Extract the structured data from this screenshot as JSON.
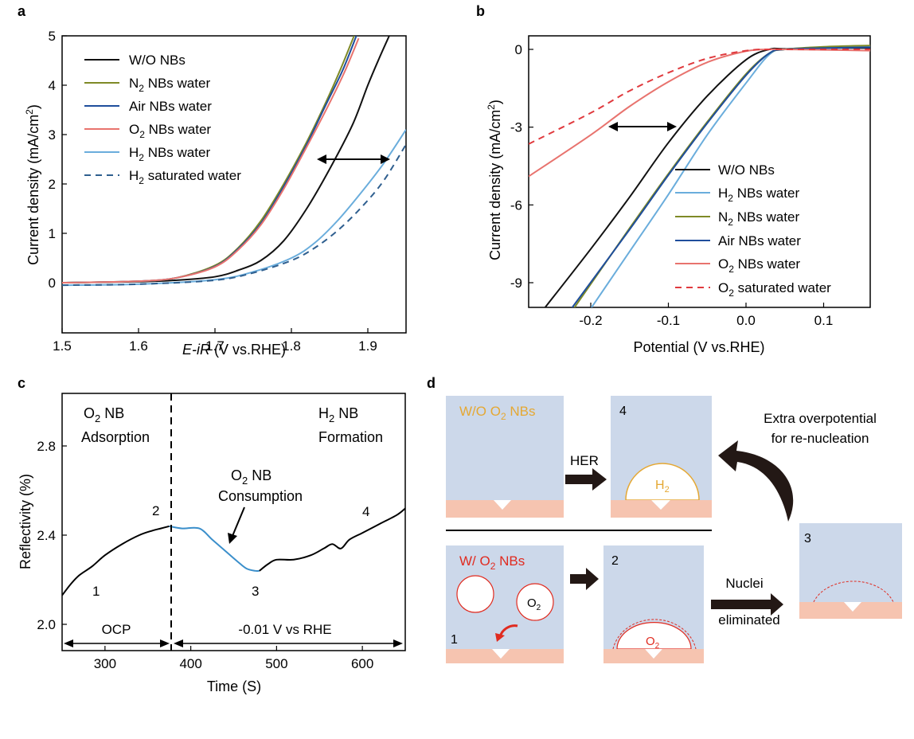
{
  "chart_data": [
    {
      "panel": "a",
      "type": "line",
      "xlabel": "E-iR",
      "xlabel_unit": " (V vs.RHE)",
      "ylabel": "Current density (mA/cm2)",
      "xlim": [
        1.5,
        1.95
      ],
      "ylim": [
        -0.1,
        5
      ],
      "xticks": [
        1.5,
        1.6,
        1.7,
        1.8,
        1.9
      ],
      "yticks": [
        0,
        1,
        2,
        3,
        4,
        5
      ],
      "legend": "top-left",
      "series": [
        {
          "name": "W/O NBs",
          "color": "#111111",
          "dash": false,
          "x": [
            1.5,
            1.6,
            1.65,
            1.7,
            1.73,
            1.76,
            1.79,
            1.82,
            1.85,
            1.88,
            1.9,
            1.915,
            1.928
          ],
          "y": [
            0,
            0.02,
            0.05,
            0.12,
            0.25,
            0.45,
            0.85,
            1.5,
            2.3,
            3.2,
            4.0,
            4.55,
            5.0
          ]
        },
        {
          "name": "N2 NBs water",
          "color": "#7f8a26",
          "dash": false,
          "x": [
            1.5,
            1.6,
            1.65,
            1.7,
            1.73,
            1.76,
            1.79,
            1.82,
            1.845,
            1.865,
            1.882
          ],
          "y": [
            0,
            0.03,
            0.1,
            0.35,
            0.7,
            1.25,
            2.0,
            2.85,
            3.65,
            4.35,
            5.0
          ]
        },
        {
          "name": "Air NBs water",
          "color": "#1f4e9c",
          "dash": false,
          "x": [
            1.5,
            1.6,
            1.65,
            1.7,
            1.73,
            1.76,
            1.79,
            1.82,
            1.845,
            1.867,
            1.885
          ],
          "y": [
            0,
            0.03,
            0.1,
            0.33,
            0.68,
            1.2,
            1.95,
            2.8,
            3.6,
            4.3,
            5.0
          ]
        },
        {
          "name": "O2 NBs water",
          "color": "#e8736e",
          "dash": false,
          "x": [
            1.5,
            1.6,
            1.65,
            1.7,
            1.73,
            1.76,
            1.79,
            1.82,
            1.847,
            1.869,
            1.888
          ],
          "y": [
            0,
            0.03,
            0.1,
            0.32,
            0.66,
            1.17,
            1.9,
            2.75,
            3.55,
            4.25,
            4.95
          ]
        },
        {
          "name": "H2 NBs water",
          "color": "#6aaddc",
          "dash": false,
          "x": [
            1.5,
            1.6,
            1.7,
            1.75,
            1.8,
            1.83,
            1.86,
            1.89,
            1.92,
            1.95
          ],
          "y": [
            -0.05,
            -0.03,
            0.06,
            0.22,
            0.5,
            0.8,
            1.25,
            1.8,
            2.4,
            3.1
          ]
        },
        {
          "name": "H2 saturated water",
          "color": "#2f5f8f",
          "dash": true,
          "x": [
            1.5,
            1.6,
            1.7,
            1.75,
            1.8,
            1.83,
            1.86,
            1.89,
            1.92,
            1.95
          ],
          "y": [
            -0.05,
            -0.03,
            0.05,
            0.2,
            0.45,
            0.7,
            1.05,
            1.5,
            2.05,
            2.8
          ]
        }
      ],
      "legend_labels": [
        "W/O NBs",
        "N",
        "2",
        " NBs water",
        "Air NBs water",
        "O",
        "2",
        " NBs water",
        "H",
        "2",
        " NBs water",
        "H",
        "2",
        " saturated water"
      ]
    },
    {
      "panel": "b",
      "type": "line",
      "xlabel": "Potential (V vs.RHE)",
      "ylabel": "Current density (mA/cm2)",
      "xlim": [
        -0.28,
        0.16
      ],
      "ylim": [
        -10,
        0.5
      ],
      "xticks": [
        -0.2,
        -0.1,
        0.0,
        0.1
      ],
      "xtick_labels": [
        "-0.2",
        "-0.1",
        "0.0",
        "0.1"
      ],
      "yticks": [
        0,
        -3,
        -6,
        -9
      ],
      "legend": "bottom-right",
      "series": [
        {
          "name": "W/O NBs",
          "color": "#111111",
          "dash": false,
          "x": [
            -0.26,
            -0.2,
            -0.15,
            -0.1,
            -0.05,
            0.0,
            0.03,
            0.05,
            0.1,
            0.16
          ],
          "y": [
            -10,
            -7.7,
            -5.7,
            -3.6,
            -1.8,
            -0.4,
            0,
            0.02,
            0.05,
            0.05
          ]
        },
        {
          "name": "H2 NBs water",
          "color": "#6aaddc",
          "dash": false,
          "x": [
            -0.2,
            -0.15,
            -0.1,
            -0.05,
            0.0,
            0.03,
            0.05,
            0.1,
            0.16
          ],
          "y": [
            -10,
            -7.8,
            -5.6,
            -3.3,
            -1.3,
            -0.2,
            0,
            0.05,
            0.1
          ]
        },
        {
          "name": "N2 NBs water",
          "color": "#7f8a26",
          "dash": false,
          "x": [
            -0.222,
            -0.15,
            -0.1,
            -0.05,
            0.0,
            0.03,
            0.05,
            0.1,
            0.16
          ],
          "y": [
            -10,
            -6.9,
            -4.8,
            -2.8,
            -0.95,
            -0.15,
            0,
            0.1,
            0.15
          ]
        },
        {
          "name": "Air NBs water",
          "color": "#1f4e9c",
          "dash": false,
          "x": [
            -0.225,
            -0.15,
            -0.1,
            -0.05,
            0.0,
            0.03,
            0.05,
            0.1,
            0.16
          ],
          "y": [
            -10,
            -6.95,
            -4.85,
            -2.85,
            -1.0,
            -0.15,
            0,
            0.05,
            0.08
          ]
        },
        {
          "name": "O2 NBs water",
          "color": "#e8736e",
          "dash": false,
          "x": [
            -0.28,
            -0.2,
            -0.15,
            -0.1,
            -0.05,
            0.0,
            0.03,
            0.05,
            0.1,
            0.16
          ],
          "y": [
            -4.9,
            -3.3,
            -2.2,
            -1.25,
            -0.5,
            -0.07,
            0,
            0,
            -0.02,
            -0.05
          ]
        },
        {
          "name": "O2 saturated water",
          "color": "#e03a3e",
          "dash": true,
          "x": [
            -0.28,
            -0.2,
            -0.15,
            -0.1,
            -0.05,
            0.0,
            0.03,
            0.05,
            0.1,
            0.16
          ],
          "y": [
            -3.65,
            -2.45,
            -1.6,
            -0.9,
            -0.35,
            -0.05,
            0,
            0,
            0,
            0
          ]
        }
      ],
      "legend_labels": [
        "W/O NBs",
        "H",
        "2",
        "  NBs water",
        "N",
        "2",
        "  NBs water",
        "Air  NBs water",
        "O",
        "2",
        "  NBs water",
        "O",
        "2",
        "  saturated water"
      ]
    },
    {
      "panel": "c",
      "type": "line",
      "xlabel": "Time (S)",
      "ylabel": "Reflectivity (%)",
      "xlim": [
        250,
        650
      ],
      "ylim": [
        1.85,
        3.05
      ],
      "xticks": [
        300,
        400,
        500,
        600
      ],
      "yticks": [
        2.0,
        2.4,
        2.8
      ],
      "ytick_labels": [
        "2.0",
        "2.4",
        "2.8"
      ],
      "divider_x": 375,
      "series": [
        {
          "name": "",
          "color": "#000000",
          "x": [
            250,
            260,
            270,
            285,
            300,
            320,
            340,
            355,
            365,
            375
          ],
          "y": [
            2.13,
            2.18,
            2.22,
            2.26,
            2.31,
            2.36,
            2.4,
            2.42,
            2.43,
            2.44
          ]
        },
        {
          "name": "",
          "color": "#3b8fcb",
          "x": [
            375,
            390,
            410,
            425,
            440,
            455,
            465,
            475,
            480
          ],
          "y": [
            2.44,
            2.43,
            2.43,
            2.38,
            2.33,
            2.28,
            2.25,
            2.24,
            2.24
          ]
        },
        {
          "name": "",
          "color": "#000000",
          "x": [
            480,
            490,
            500,
            520,
            540,
            555,
            565,
            575,
            585,
            600,
            620,
            640,
            650
          ],
          "y": [
            2.24,
            2.27,
            2.29,
            2.29,
            2.31,
            2.34,
            2.36,
            2.34,
            2.38,
            2.41,
            2.45,
            2.49,
            2.52
          ]
        }
      ],
      "annotations": {
        "o2_adsorption": [
          "O",
          "2",
          " NB",
          "Adsorption"
        ],
        "h2_formation": [
          "H",
          "2",
          " NB",
          "Formation"
        ],
        "o2_consumption": [
          "O",
          "2",
          " NB",
          "Consumption"
        ],
        "points": [
          "1",
          "2",
          "3",
          "4"
        ],
        "ocp": "OCP",
        "potential": "-0.01 V vs RHE"
      }
    }
  ],
  "panel_labels": [
    "a",
    "b",
    "c",
    "d"
  ],
  "schematic": {
    "wo_label": [
      "W/O O",
      "2",
      " NBs"
    ],
    "w_label": [
      "W/ O",
      "2",
      " NBs"
    ],
    "her": "HER",
    "nuclei": "Nuclei",
    "eliminated": "eliminated",
    "extra1": "Extra overpotential",
    "extra2": "for re-nucleation",
    "h2": [
      "H",
      "2"
    ],
    "o2": [
      "O",
      "2"
    ],
    "numbers": [
      "1",
      "2",
      "3",
      "4"
    ],
    "colors": {
      "box": "#ccd8ea",
      "substrate": "#f6c4b0",
      "o2": "#e02b20",
      "h2": "#e5a833"
    }
  }
}
